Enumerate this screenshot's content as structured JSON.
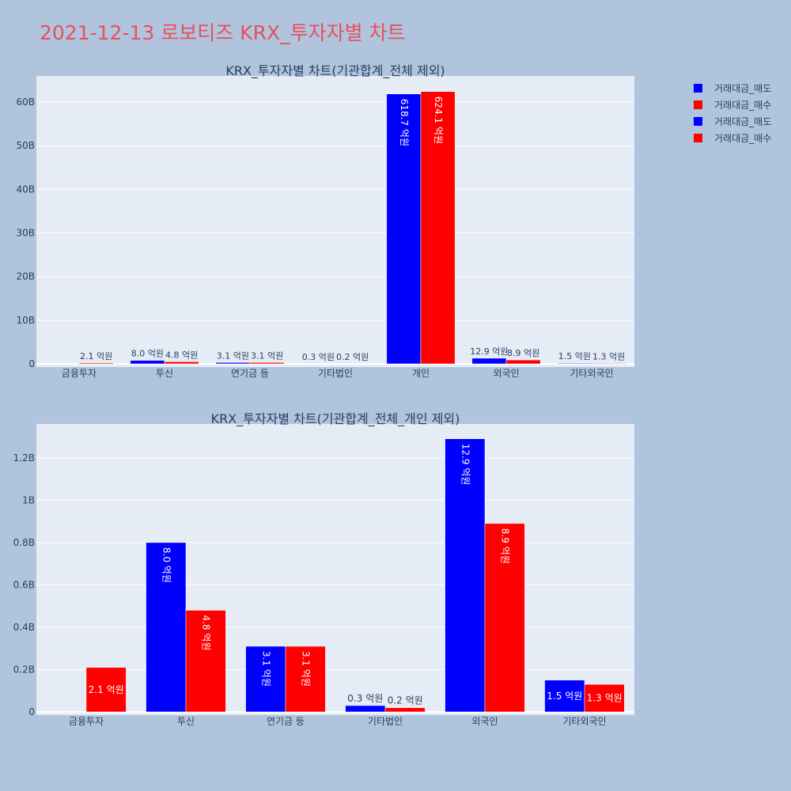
{
  "page": {
    "title": "2021-12-13 로보티즈 KRX_투자자별 차트"
  },
  "legend": {
    "position": "top-right",
    "items": [
      {
        "label": "거래대금_매도",
        "color": "#0000ff"
      },
      {
        "label": "거래대금_매수",
        "color": "#ff0000"
      },
      {
        "label": "거래대금_매도",
        "color": "#0000ff"
      },
      {
        "label": "거래대금_매수",
        "color": "#ff0000"
      }
    ]
  },
  "chart_data": [
    {
      "type": "bar",
      "title": "KRX_투자자별 차트(기관합계_전체 제외)",
      "categories": [
        "금융투자",
        "투신",
        "연기금 등",
        "기타법인",
        "개인",
        "외국인",
        "기타외국인"
      ],
      "series": [
        {
          "name": "거래대금_매도",
          "color": "#0000ff",
          "values": [
            0,
            0.8,
            0.31,
            0.03,
            61.87,
            1.29,
            0.15
          ],
          "labels": [
            "",
            "8.0 억원",
            "3.1 억원",
            "0.3 억원",
            "618.7 억원",
            "12.9 억원",
            "1.5 억원"
          ]
        },
        {
          "name": "거래대금_매수",
          "color": "#ff0000",
          "values": [
            0.21,
            0.48,
            0.31,
            0.02,
            62.41,
            0.89,
            0.13
          ],
          "labels": [
            "2.1 억원",
            "4.8 억원",
            "3.1 억원",
            "0.2 억원",
            "624.1 억원",
            "8.9 억원",
            "1.3 억원"
          ]
        }
      ],
      "yticks": [
        0,
        10,
        20,
        30,
        40,
        50,
        60
      ],
      "ytick_labels": [
        "0",
        "10B",
        "20B",
        "30B",
        "40B",
        "50B",
        "60B"
      ],
      "ylim": [
        0,
        66
      ],
      "grid": true
    },
    {
      "type": "bar",
      "title": "KRX_투자자별 차트(기관합계_전체_개인 제외)",
      "categories": [
        "금융투자",
        "투신",
        "연기금 등",
        "기타법인",
        "외국인",
        "기타외국인"
      ],
      "series": [
        {
          "name": "거래대금_매도",
          "color": "#0000ff",
          "values": [
            0,
            0.8,
            0.31,
            0.03,
            1.29,
            0.15
          ],
          "labels": [
            "",
            "8.0 억원",
            "3.1 억원",
            "0.3 억원",
            "12.9 억원",
            "1.5 억원"
          ]
        },
        {
          "name": "거래대금_매수",
          "color": "#ff0000",
          "values": [
            0.21,
            0.48,
            0.31,
            0.02,
            0.89,
            0.13
          ],
          "labels": [
            "2.1 억원",
            "4.8 억원",
            "3.1 억원",
            "0.2 억원",
            "8.9 억원",
            "1.3 억원"
          ]
        }
      ],
      "yticks": [
        0,
        0.2,
        0.4,
        0.6,
        0.8,
        1.0,
        1.2
      ],
      "ytick_labels": [
        "0",
        "0.2B",
        "0.4B",
        "0.6B",
        "0.8B",
        "1B",
        "1.2B"
      ],
      "ylim": [
        0,
        1.36
      ],
      "grid": true
    }
  ]
}
